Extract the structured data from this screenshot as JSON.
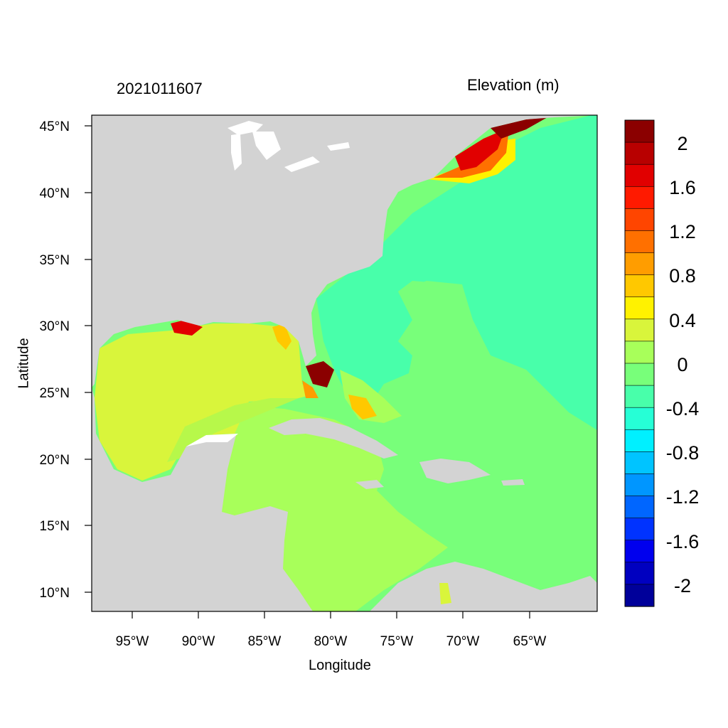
{
  "header": {
    "timestamp": "2021011607",
    "variable_label": "Elevation (m)"
  },
  "axes": {
    "x_title": "Longitude",
    "y_title": "Latitude",
    "x_ticks": [
      "95°W",
      "90°W",
      "85°W",
      "80°W",
      "75°W",
      "70°W",
      "65°W"
    ],
    "y_ticks": [
      "45°N",
      "40°N",
      "35°N",
      "30°N",
      "25°N",
      "20°N",
      "15°N",
      "10°N"
    ]
  },
  "colorbar": {
    "labels": [
      "2",
      "1.6",
      "1.2",
      "0.8",
      "0.4",
      "0",
      "-0.4",
      "-0.8",
      "-1.2",
      "-1.6",
      "-2"
    ],
    "colors": [
      "#8b0000",
      "#b80000",
      "#e10000",
      "#ff1a00",
      "#ff4500",
      "#ff7000",
      "#ff9d00",
      "#ffc800",
      "#fff200",
      "#d9f53b",
      "#a8ff5a",
      "#78ff7a",
      "#48ffaa",
      "#26ffd6",
      "#00f0ff",
      "#00c4ff",
      "#0096ff",
      "#0066ff",
      "#0033ff",
      "#0000ee",
      "#0000c0",
      "#00009a"
    ]
  },
  "colors": {
    "land": "#d3d3d3",
    "lake": "#ffffff",
    "open_ocean": "#78ff7a",
    "western_atlantic": "#48ffaa",
    "caribbean": "#a8ff5a",
    "gulf": "#d9f53b"
  }
}
